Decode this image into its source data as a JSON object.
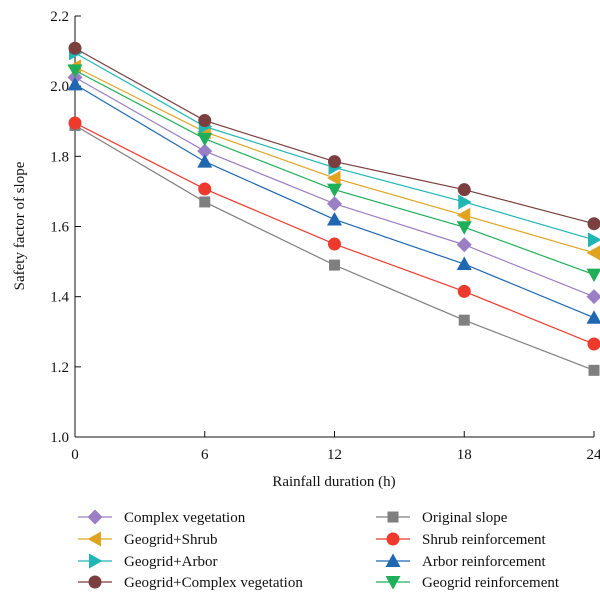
{
  "chart_data": {
    "type": "line",
    "title": "",
    "xlabel": "Rainfall duration (h)",
    "ylabel": "Safety factor of slope",
    "x": [
      0,
      6,
      12,
      18,
      24
    ],
    "xlim": [
      0,
      24
    ],
    "ylim": [
      1.0,
      2.2
    ],
    "xticks": [
      "0",
      "6",
      "12",
      "18",
      "24"
    ],
    "yticks": [
      "1.0",
      "1.2",
      "1.4",
      "1.6",
      "1.8",
      "2.0",
      "2.2"
    ],
    "grid": false,
    "legend_position": "bottom",
    "series": [
      {
        "name": "Complex vegetation",
        "values": [
          2.025,
          1.815,
          1.665,
          1.548,
          1.4
        ],
        "color": "#9b7fc4",
        "marker": "diamond"
      },
      {
        "name": "Geogrid+Shrub",
        "values": [
          2.055,
          1.87,
          1.738,
          1.632,
          1.525
        ],
        "color": "#e0a422",
        "marker": "triangle-left"
      },
      {
        "name": "Geogrid+Arbor",
        "values": [
          2.095,
          1.885,
          1.768,
          1.67,
          1.562
        ],
        "color": "#21b5b5",
        "marker": "triangle-right"
      },
      {
        "name": "Geogrid+Complex vegetation",
        "values": [
          2.108,
          1.902,
          1.785,
          1.705,
          1.608
        ],
        "color": "#7b3f3f",
        "marker": "circle"
      },
      {
        "name": "Original slope",
        "values": [
          1.888,
          1.67,
          1.49,
          1.333,
          1.19
        ],
        "color": "#7f7f7f",
        "marker": "square"
      },
      {
        "name": "Shrub reinforcement",
        "values": [
          1.895,
          1.707,
          1.55,
          1.415,
          1.265
        ],
        "color": "#ee3a2c",
        "marker": "circle"
      },
      {
        "name": "Arbor reinforcement",
        "values": [
          2.005,
          1.785,
          1.62,
          1.493,
          1.34
        ],
        "color": "#1f67b0",
        "marker": "triangle-up"
      },
      {
        "name": "Geogrid reinforcement",
        "values": [
          2.045,
          1.85,
          1.705,
          1.598,
          1.463
        ],
        "color": "#1fae5a",
        "marker": "triangle-down"
      }
    ]
  }
}
